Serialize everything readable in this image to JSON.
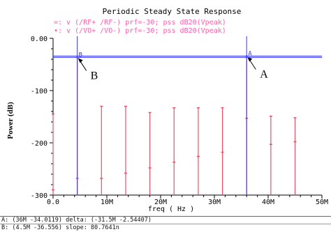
{
  "chart_data": {
    "type": "scatter",
    "title": "Periodic Steady State Response",
    "legend": [
      {
        "marker": "=:",
        "text": "v (/RF+ /RF-) prf=-30; pss dB20(Vpeak)"
      },
      {
        "marker": "•:",
        "text": "v (/VO+ /VO-) prf=-30; pss dB20(Vpeak)"
      }
    ],
    "xlabel": "freq ( Hz )",
    "ylabel": "Power (dB)",
    "xlim": [
      0,
      50
    ],
    "ylim": [
      -300,
      0
    ],
    "x_unit": "M",
    "x_ticks": [
      "0.0",
      "10M",
      "20M",
      "30M",
      "40M",
      "50M"
    ],
    "y_ticks": [
      "0.00",
      "-100",
      "-200",
      "-300"
    ],
    "y_tick_values": [
      0,
      -100,
      -200,
      -300
    ],
    "baseline": -300,
    "series": [
      {
        "name": "v (/RF+ /RF-)",
        "x": [
          0,
          4.5,
          9,
          13.5,
          18,
          22.5,
          27,
          31.5,
          36,
          40.5,
          45
        ],
        "y": [
          -290,
          -268,
          -268,
          -258,
          -248,
          -237,
          -226,
          -218,
          -34,
          -203,
          -198
        ]
      },
      {
        "name": "v (/VO+ /VO-)",
        "x": [
          0,
          4.5,
          9,
          13.5,
          18,
          22.5,
          27,
          31.5,
          36,
          40.5,
          45
        ],
        "y": [
          -145,
          -36.6,
          -130,
          -130,
          -142,
          -133,
          -133,
          -133,
          -153,
          -149,
          -152
        ]
      }
    ],
    "markers": [
      {
        "id": "A",
        "x": 36,
        "y": -34.0119,
        "callout": "A"
      },
      {
        "id": "B",
        "x": 4.5,
        "y": -36.556,
        "callout": "B"
      }
    ],
    "colors": {
      "series": "#e8506a",
      "marker": "#3333ff",
      "axis": "#000000",
      "legend": "#ff5ca8"
    }
  },
  "status": {
    "line_a": "A: (36M -34.0119) delta: (-31.5M -2.54407)",
    "line_b": "B: (4.5M -36.556) slope: 80.7641n"
  }
}
